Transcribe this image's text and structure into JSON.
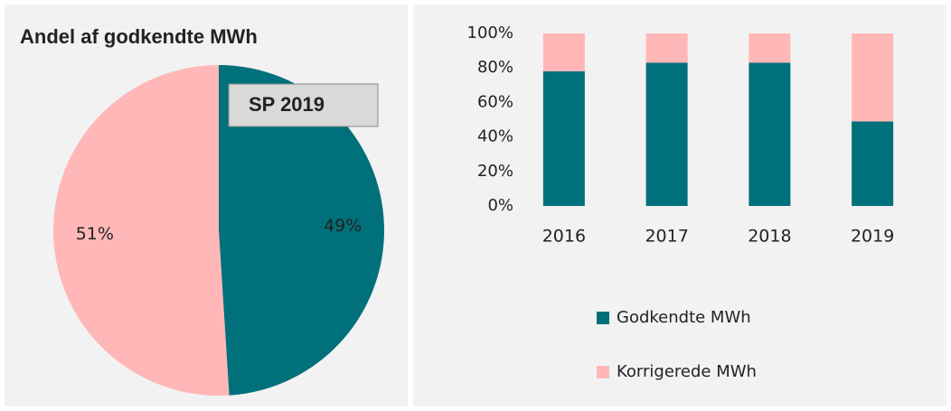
{
  "chart_data": [
    {
      "type": "pie",
      "title": "Andel af godkendte MWh",
      "annotation": "SP 2019",
      "values": [
        49,
        51
      ],
      "value_labels": [
        "49%",
        "51%"
      ],
      "colors": [
        "#00707a",
        "#ffb7b7"
      ]
    },
    {
      "type": "bar",
      "stacked": true,
      "categories": [
        "2016",
        "2017",
        "2018",
        "2019"
      ],
      "series": [
        {
          "name": "Godkendte MWh",
          "color": "#00707a",
          "values": [
            78,
            83,
            83,
            49
          ]
        },
        {
          "name": "Korrigerede MWh",
          "color": "#ffb7b7",
          "values": [
            22,
            17,
            17,
            51
          ]
        }
      ],
      "ylim": [
        0,
        100
      ],
      "yticks": [
        {
          "value": 0,
          "label": "0%"
        },
        {
          "value": 20,
          "label": "20%"
        },
        {
          "value": 40,
          "label": "40%"
        },
        {
          "value": 60,
          "label": "60%"
        },
        {
          "value": 80,
          "label": "80%"
        },
        {
          "value": 100,
          "label": "100%"
        }
      ],
      "legend": "bottom"
    }
  ]
}
